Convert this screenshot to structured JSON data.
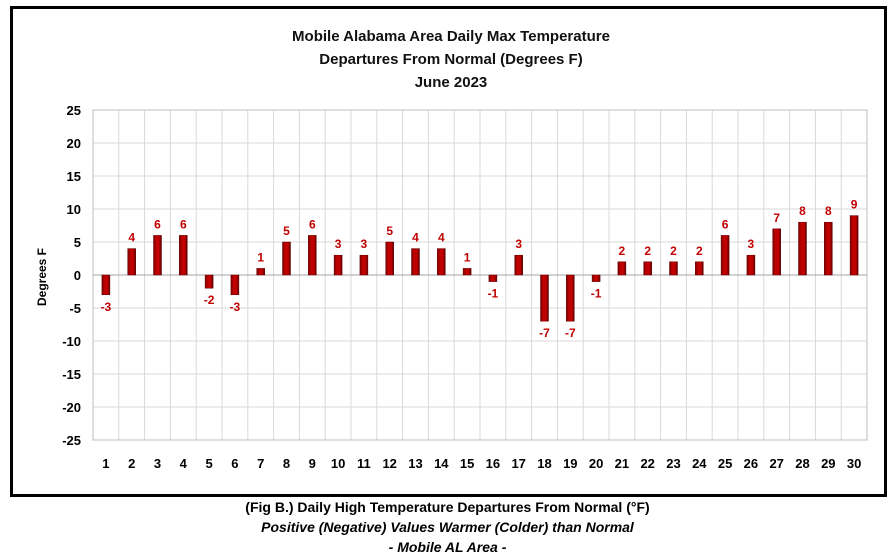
{
  "chart_data": {
    "type": "bar",
    "title_lines": [
      "Mobile Alabama Area Daily Max Temperature",
      "Departures From Normal (Degrees F)",
      "June 2023"
    ],
    "xlabel": "",
    "ylabel": "Degrees F",
    "categories": [
      "1",
      "2",
      "3",
      "4",
      "5",
      "6",
      "7",
      "8",
      "9",
      "10",
      "11",
      "12",
      "13",
      "14",
      "15",
      "16",
      "17",
      "18",
      "19",
      "20",
      "21",
      "22",
      "23",
      "24",
      "25",
      "26",
      "27",
      "28",
      "29",
      "30"
    ],
    "values": [
      -3,
      4,
      6,
      6,
      -2,
      -3,
      1,
      5,
      6,
      3,
      3,
      5,
      4,
      4,
      1,
      -1,
      3,
      -7,
      -7,
      -1,
      2,
      2,
      2,
      2,
      6,
      3,
      7,
      8,
      8,
      9
    ],
    "data_labels": [
      "-3",
      "4",
      "6",
      "6",
      "-2",
      "-3",
      "1",
      "5",
      "6",
      "3",
      "3",
      "5",
      "4",
      "4",
      "1",
      "-1",
      "3",
      "-7",
      "-7",
      "-1",
      "2",
      "2",
      "2",
      "2",
      "6",
      "3",
      "7",
      "8",
      "8",
      "9"
    ],
    "ylim": [
      -25,
      25
    ],
    "yticks": [
      "25",
      "20",
      "15",
      "10",
      "5",
      "0",
      "-5",
      "-10",
      "-15",
      "-20",
      "-25"
    ],
    "grid": true,
    "legend": "none",
    "bar_color": "#c00000",
    "label_color": "#c00000"
  },
  "caption": {
    "line1": "(Fig B.) Daily High Temperature Departures From Normal (°F)",
    "line2": "Positive (Negative) Values Warmer (Colder) than Normal",
    "line3": "- Mobile AL Area -"
  }
}
